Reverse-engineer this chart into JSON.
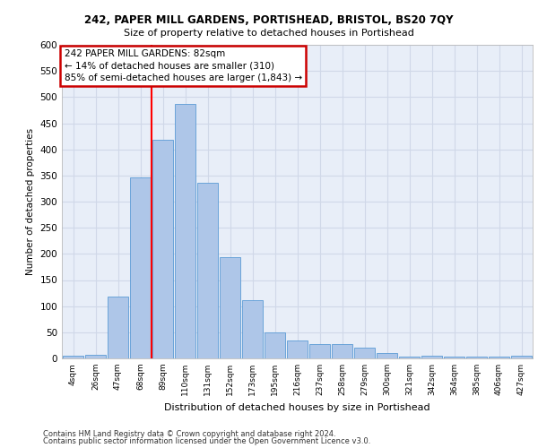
{
  "title": "242, PAPER MILL GARDENS, PORTISHEAD, BRISTOL, BS20 7QY",
  "subtitle": "Size of property relative to detached houses in Portishead",
  "xlabel": "Distribution of detached houses by size in Portishead",
  "ylabel": "Number of detached properties",
  "bar_labels": [
    "4sqm",
    "26sqm",
    "47sqm",
    "68sqm",
    "89sqm",
    "110sqm",
    "131sqm",
    "152sqm",
    "173sqm",
    "195sqm",
    "216sqm",
    "237sqm",
    "258sqm",
    "279sqm",
    "300sqm",
    "321sqm",
    "342sqm",
    "364sqm",
    "385sqm",
    "406sqm",
    "427sqm"
  ],
  "bar_values": [
    6,
    7,
    118,
    346,
    419,
    487,
    336,
    193,
    112,
    50,
    35,
    27,
    27,
    20,
    10,
    4,
    5,
    4,
    4,
    4,
    6
  ],
  "bar_color": "#aec6e8",
  "bar_edge_color": "#5b9bd5",
  "annotation_box_text": "242 PAPER MILL GARDENS: 82sqm\n← 14% of detached houses are smaller (310)\n85% of semi-detached houses are larger (1,843) →",
  "annotation_box_color": "#ffffff",
  "annotation_box_edge_color": "#cc0000",
  "grid_color": "#d0d8e8",
  "background_color": "#e8eef8",
  "ylim": [
    0,
    600
  ],
  "yticks": [
    0,
    50,
    100,
    150,
    200,
    250,
    300,
    350,
    400,
    450,
    500,
    550,
    600
  ],
  "footer_line1": "Contains HM Land Registry data © Crown copyright and database right 2024.",
  "footer_line2": "Contains public sector information licensed under the Open Government Licence v3.0."
}
